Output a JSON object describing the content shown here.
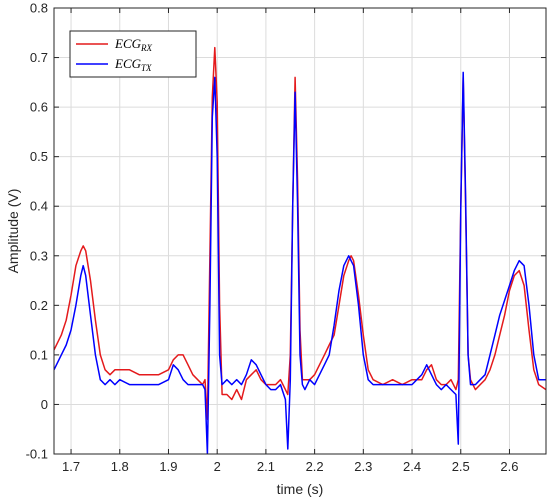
{
  "chart_data": {
    "type": "line",
    "title": "",
    "xlabel": "time (s)",
    "ylabel": "Amplitude (V)",
    "xlim": [
      1.665,
      2.675
    ],
    "ylim": [
      -0.1,
      0.8
    ],
    "xticks": [
      1.7,
      1.8,
      1.9,
      2,
      2.1,
      2.2,
      2.3,
      2.4,
      2.5,
      2.6
    ],
    "xtick_labels": [
      "1.7",
      "1.8",
      "1.9",
      "2",
      "2.1",
      "2.2",
      "2.3",
      "2.4",
      "2.5",
      "2.6"
    ],
    "yticks": [
      -0.1,
      0,
      0.1,
      0.2,
      0.3,
      0.4,
      0.5,
      0.6,
      0.7,
      0.8
    ],
    "ytick_labels": [
      "-0.1",
      "0",
      "0.1",
      "0.2",
      "0.3",
      "0.4",
      "0.5",
      "0.6",
      "0.7",
      "0.8"
    ],
    "grid": true,
    "legend_position": "top-left",
    "series": [
      {
        "name": "ECG_RX",
        "label_main": "ECG",
        "label_sub": "RX",
        "color": "#e41a1c",
        "x": [
          1.665,
          1.68,
          1.69,
          1.7,
          1.71,
          1.72,
          1.725,
          1.73,
          1.74,
          1.75,
          1.76,
          1.77,
          1.78,
          1.79,
          1.8,
          1.82,
          1.84,
          1.86,
          1.88,
          1.9,
          1.91,
          1.92,
          1.93,
          1.94,
          1.95,
          1.96,
          1.97,
          1.975,
          1.98,
          1.985,
          1.99,
          1.995,
          2.0,
          2.005,
          2.01,
          2.02,
          2.03,
          2.04,
          2.05,
          2.06,
          2.07,
          2.08,
          2.09,
          2.1,
          2.11,
          2.12,
          2.13,
          2.14,
          2.145,
          2.15,
          2.155,
          2.16,
          2.165,
          2.17,
          2.175,
          2.18,
          2.19,
          2.2,
          2.21,
          2.22,
          2.23,
          2.24,
          2.25,
          2.26,
          2.27,
          2.275,
          2.28,
          2.29,
          2.3,
          2.31,
          2.32,
          2.34,
          2.36,
          2.38,
          2.4,
          2.42,
          2.43,
          2.44,
          2.45,
          2.46,
          2.47,
          2.48,
          2.49,
          2.495,
          2.5,
          2.505,
          2.51,
          2.515,
          2.52,
          2.53,
          2.54,
          2.55,
          2.56,
          2.57,
          2.58,
          2.59,
          2.6,
          2.61,
          2.62,
          2.63,
          2.64,
          2.65,
          2.66,
          2.675
        ],
        "y": [
          0.11,
          0.14,
          0.17,
          0.22,
          0.28,
          0.31,
          0.32,
          0.31,
          0.25,
          0.17,
          0.1,
          0.07,
          0.06,
          0.07,
          0.07,
          0.07,
          0.06,
          0.06,
          0.06,
          0.07,
          0.09,
          0.1,
          0.1,
          0.08,
          0.06,
          0.05,
          0.04,
          0.05,
          -0.03,
          0.3,
          0.62,
          0.72,
          0.61,
          0.2,
          0.02,
          0.02,
          0.01,
          0.03,
          0.01,
          0.05,
          0.06,
          0.07,
          0.05,
          0.04,
          0.04,
          0.04,
          0.05,
          0.03,
          0.02,
          0.1,
          0.4,
          0.66,
          0.45,
          0.15,
          0.05,
          0.05,
          0.05,
          0.06,
          0.08,
          0.1,
          0.12,
          0.14,
          0.2,
          0.26,
          0.29,
          0.3,
          0.29,
          0.22,
          0.14,
          0.07,
          0.05,
          0.04,
          0.05,
          0.04,
          0.05,
          0.05,
          0.07,
          0.08,
          0.05,
          0.04,
          0.04,
          0.05,
          0.03,
          0.05,
          0.4,
          0.66,
          0.4,
          0.1,
          0.05,
          0.03,
          0.04,
          0.05,
          0.07,
          0.1,
          0.14,
          0.18,
          0.23,
          0.26,
          0.27,
          0.24,
          0.15,
          0.07,
          0.04,
          0.03
        ]
      },
      {
        "name": "ECG_TX",
        "label_main": "ECG",
        "label_sub": "TX",
        "color": "#0000ff",
        "x": [
          1.665,
          1.68,
          1.69,
          1.7,
          1.71,
          1.72,
          1.725,
          1.73,
          1.74,
          1.75,
          1.76,
          1.77,
          1.78,
          1.79,
          1.8,
          1.82,
          1.84,
          1.86,
          1.88,
          1.9,
          1.91,
          1.92,
          1.93,
          1.94,
          1.95,
          1.96,
          1.97,
          1.975,
          1.98,
          1.985,
          1.99,
          1.995,
          2.0,
          2.005,
          2.01,
          2.02,
          2.03,
          2.04,
          2.05,
          2.06,
          2.07,
          2.08,
          2.09,
          2.1,
          2.11,
          2.12,
          2.13,
          2.14,
          2.145,
          2.15,
          2.155,
          2.16,
          2.165,
          2.17,
          2.175,
          2.18,
          2.19,
          2.2,
          2.21,
          2.22,
          2.23,
          2.24,
          2.25,
          2.26,
          2.27,
          2.275,
          2.28,
          2.29,
          2.3,
          2.31,
          2.32,
          2.34,
          2.36,
          2.38,
          2.4,
          2.42,
          2.43,
          2.44,
          2.45,
          2.46,
          2.47,
          2.48,
          2.49,
          2.495,
          2.5,
          2.505,
          2.51,
          2.515,
          2.52,
          2.53,
          2.54,
          2.55,
          2.56,
          2.57,
          2.58,
          2.59,
          2.6,
          2.61,
          2.62,
          2.63,
          2.64,
          2.65,
          2.66,
          2.675
        ],
        "y": [
          0.07,
          0.1,
          0.12,
          0.15,
          0.2,
          0.26,
          0.28,
          0.26,
          0.18,
          0.1,
          0.05,
          0.04,
          0.05,
          0.04,
          0.05,
          0.04,
          0.04,
          0.04,
          0.04,
          0.05,
          0.08,
          0.07,
          0.05,
          0.04,
          0.04,
          0.04,
          0.04,
          0.03,
          -0.1,
          0.2,
          0.58,
          0.66,
          0.5,
          0.1,
          0.04,
          0.05,
          0.04,
          0.05,
          0.04,
          0.06,
          0.09,
          0.08,
          0.06,
          0.04,
          0.03,
          0.03,
          0.04,
          0.01,
          -0.09,
          0.05,
          0.4,
          0.63,
          0.4,
          0.1,
          0.04,
          0.03,
          0.05,
          0.04,
          0.06,
          0.08,
          0.1,
          0.16,
          0.23,
          0.28,
          0.3,
          0.29,
          0.28,
          0.2,
          0.1,
          0.05,
          0.04,
          0.04,
          0.04,
          0.04,
          0.04,
          0.06,
          0.08,
          0.06,
          0.04,
          0.03,
          0.04,
          0.03,
          0.02,
          -0.08,
          0.4,
          0.67,
          0.42,
          0.1,
          0.04,
          0.04,
          0.05,
          0.06,
          0.1,
          0.14,
          0.18,
          0.21,
          0.24,
          0.27,
          0.29,
          0.28,
          0.2,
          0.1,
          0.05,
          0.05
        ]
      }
    ]
  }
}
